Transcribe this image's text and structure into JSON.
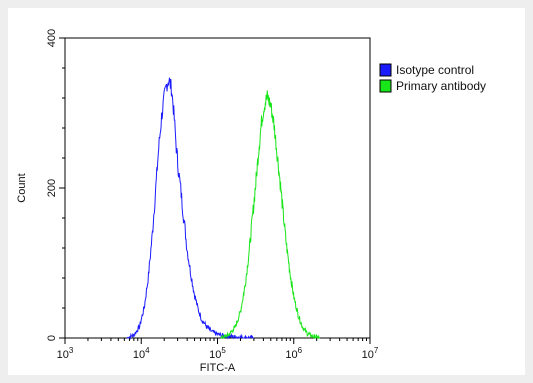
{
  "chart_data": {
    "type": "line",
    "title": "",
    "xlabel": "FITC-A",
    "ylabel": "Count",
    "x_scale": "log",
    "xlim": [
      1000,
      10000000
    ],
    "ylim": [
      0,
      400
    ],
    "x_ticks": [
      {
        "value": 1000,
        "base": "10",
        "exp": "3"
      },
      {
        "value": 10000,
        "base": "10",
        "exp": "4"
      },
      {
        "value": 100000,
        "base": "10",
        "exp": "5"
      },
      {
        "value": 1000000,
        "base": "10",
        "exp": "6"
      },
      {
        "value": 10000000,
        "base": "10",
        "exp": "7"
      }
    ],
    "y_ticks": [
      {
        "value": 0,
        "label": "0"
      },
      {
        "value": 200,
        "label": "200"
      },
      {
        "value": 400,
        "label": "400"
      }
    ],
    "grid": false,
    "legend": "top-right",
    "series": [
      {
        "name": "Isotype control",
        "color": "#1a1aff",
        "peak_x": 23000,
        "peak_y": 345,
        "x": [
          6500,
          8000,
          9500,
          11000,
          12500,
          14000,
          15500,
          17000,
          18500,
          20000,
          21500,
          23000,
          25000,
          27000,
          29000,
          31500,
          34000,
          37000,
          40000,
          44000,
          49000,
          55000,
          62000,
          72000,
          85000,
          100000,
          120000,
          150000,
          200000,
          300000
        ],
        "y": [
          0,
          4,
          15,
          42,
          85,
          140,
          200,
          255,
          295,
          320,
          338,
          345,
          332,
          295,
          250,
          215,
          185,
          150,
          118,
          90,
          62,
          40,
          25,
          15,
          8,
          5,
          3,
          2,
          1,
          0
        ]
      },
      {
        "name": "Primary antibody",
        "color": "#19e619",
        "peak_x": 450000,
        "peak_y": 322,
        "x": [
          110000,
          140000,
          170000,
          200000,
          230000,
          260000,
          290000,
          320000,
          350000,
          380000,
          410000,
          450000,
          500000,
          550000,
          600000,
          660000,
          720000,
          800000,
          900000,
          1000000,
          1150000,
          1300000,
          1500000,
          1800000,
          2200000
        ],
        "y": [
          0,
          4,
          14,
          35,
          70,
          115,
          165,
          210,
          255,
          290,
          310,
          322,
          310,
          285,
          250,
          210,
          170,
          125,
          85,
          55,
          30,
          15,
          6,
          2,
          0
        ]
      }
    ]
  }
}
